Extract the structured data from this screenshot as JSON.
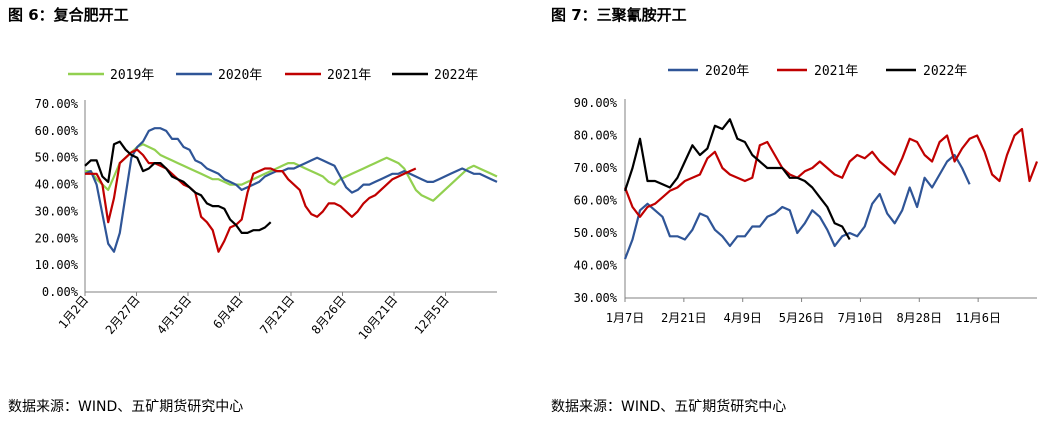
{
  "left": {
    "title": "图 6：复合肥开工",
    "source": "数据来源：WIND、五矿期货研究中心"
  },
  "right": {
    "title": "图 7：三聚氰胺开工",
    "source": "数据来源：WIND、五矿期货研究中心"
  },
  "chart_data": [
    {
      "type": "line",
      "y_ticks": [
        "0.00%",
        "10.00%",
        "20.00%",
        "30.00%",
        "40.00%",
        "50.00%",
        "60.00%",
        "70.00%"
      ],
      "x_ticks": [
        "1月2日",
        "2月27日",
        "4月15日",
        "6月4日",
        "7月21日",
        "8月26日",
        "10月21日",
        "12月5日"
      ],
      "ylim": [
        0,
        70
      ],
      "grid": false,
      "legend": "top",
      "series": [
        {
          "name": "2019年",
          "color": "#92d050",
          "values": [
            45,
            45,
            42,
            40,
            38,
            43,
            48,
            50,
            52,
            54,
            55,
            54,
            53,
            51,
            50,
            49,
            48,
            47,
            46,
            45,
            44,
            43,
            42,
            42,
            41,
            40,
            40,
            40,
            41,
            42,
            43,
            44,
            45,
            46,
            47,
            48,
            48,
            47,
            46,
            45,
            44,
            43,
            41,
            40,
            42,
            43,
            44,
            45,
            46,
            47,
            48,
            49,
            50,
            49,
            48,
            46,
            42,
            38,
            36,
            35,
            34,
            36,
            38,
            40,
            42,
            44,
            46,
            47,
            46,
            45,
            44,
            43
          ]
        },
        {
          "name": "2020年",
          "color": "#2f5597",
          "values": [
            44,
            45,
            40,
            29,
            18,
            15,
            22,
            36,
            50,
            54,
            56,
            60,
            61,
            61,
            60,
            57,
            57,
            54,
            53,
            49,
            48,
            46,
            45,
            44,
            42,
            41,
            40,
            38,
            39,
            40,
            41,
            43,
            44,
            45,
            45,
            46,
            46,
            47,
            48,
            49,
            50,
            49,
            48,
            47,
            43,
            39,
            37,
            38,
            40,
            40,
            41,
            42,
            43,
            44,
            44,
            45,
            44,
            43,
            42,
            41,
            41,
            42,
            43,
            44,
            45,
            46,
            45,
            44,
            44,
            43,
            42,
            41
          ]
        },
        {
          "name": "2021年",
          "color": "#c00000",
          "values": [
            44,
            44,
            44,
            40,
            26,
            35,
            48,
            50,
            52,
            53,
            51,
            48,
            48,
            47,
            46,
            44,
            42,
            40,
            39,
            37,
            28,
            26,
            23,
            15,
            19,
            24,
            25,
            27,
            37,
            44,
            45,
            46,
            46,
            45,
            45,
            42,
            40,
            38,
            32,
            29,
            28,
            30,
            33,
            33,
            32,
            30,
            28,
            30,
            33,
            35,
            36,
            38,
            40,
            42,
            43,
            44,
            45,
            46
          ]
        },
        {
          "name": "2022年",
          "color": "#000000",
          "values": [
            47,
            49,
            49,
            43,
            41,
            55,
            56,
            53,
            51,
            50,
            45,
            46,
            48,
            48,
            46,
            43,
            42,
            41,
            39,
            37,
            36,
            33,
            32,
            32,
            31,
            27,
            25,
            22,
            22,
            23,
            23,
            24,
            26
          ]
        }
      ]
    },
    {
      "type": "line",
      "y_ticks": [
        "30.00%",
        "40.00%",
        "50.00%",
        "60.00%",
        "70.00%",
        "80.00%",
        "90.00%"
      ],
      "x_ticks": [
        "1月7日",
        "2月21日",
        "4月9日",
        "5月26日",
        "7月10日",
        "8月28日",
        "11月6日"
      ],
      "ylim": [
        30,
        90
      ],
      "grid": false,
      "legend": "top",
      "series": [
        {
          "name": "2020年",
          "color": "#2f5597",
          "values": [
            42,
            48,
            57,
            59,
            57,
            55,
            49,
            49,
            48,
            51,
            56,
            55,
            51,
            49,
            46,
            49,
            49,
            52,
            52,
            55,
            56,
            58,
            57,
            50,
            53,
            57,
            55,
            51,
            46,
            49,
            50,
            49,
            52,
            59,
            62,
            56,
            53,
            57,
            64,
            58,
            67,
            64,
            68,
            72,
            74,
            70,
            65
          ]
        },
        {
          "name": "2021年",
          "color": "#c00000",
          "values": [
            64,
            58,
            55,
            58,
            59,
            61,
            63,
            64,
            66,
            67,
            68,
            73,
            75,
            70,
            68,
            67,
            66,
            67,
            77,
            78,
            74,
            70,
            68,
            67,
            69,
            70,
            72,
            70,
            68,
            67,
            72,
            74,
            73,
            75,
            72,
            70,
            68,
            73,
            79,
            78,
            74,
            72,
            78,
            80,
            72,
            76,
            79,
            80,
            75,
            68,
            66,
            74,
            80,
            82,
            66,
            72
          ]
        },
        {
          "name": "2022年",
          "color": "#000000",
          "values": [
            63,
            70,
            79,
            66,
            66,
            65,
            64,
            67,
            72,
            77,
            74,
            76,
            83,
            82,
            85,
            79,
            78,
            74,
            72,
            70,
            70,
            70,
            67,
            67,
            66,
            64,
            61,
            58,
            53,
            52,
            48
          ]
        }
      ]
    }
  ]
}
